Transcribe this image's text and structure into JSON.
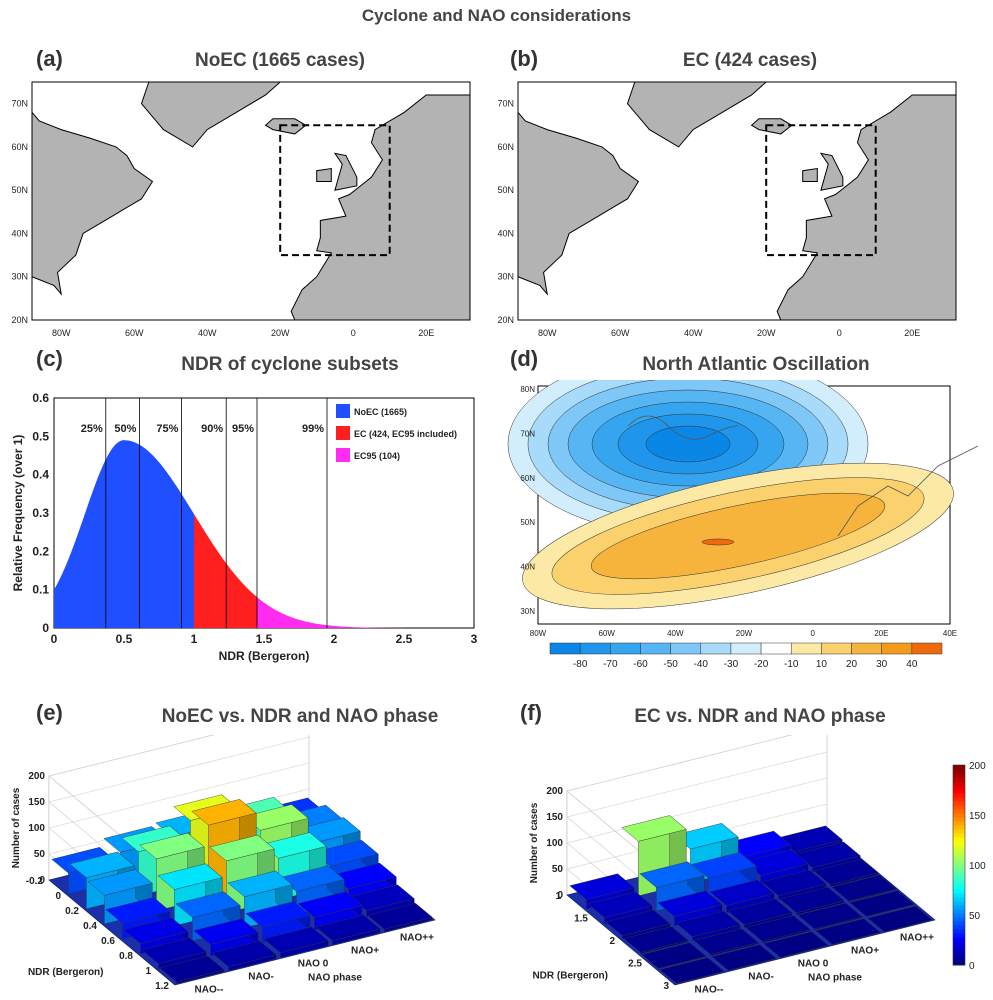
{
  "figure": {
    "title": "Cyclone and NAO considerations"
  },
  "panels": {
    "a": {
      "label": "(a)",
      "title": "NoEC (1665 cases)"
    },
    "b": {
      "label": "(b)",
      "title": "EC (424 cases)"
    },
    "c": {
      "label": "(c)",
      "title": "NDR of cyclone subsets"
    },
    "d": {
      "label": "(d)",
      "title": "North Atlantic Oscillation"
    },
    "e": {
      "label": "(e)",
      "title": "NoEC vs. NDR and NAO phase"
    },
    "f": {
      "label": "(f)",
      "title": "EC vs. NDR and NAO phase"
    }
  },
  "colors": {
    "noec": "#1f4fff",
    "ec": "#ff1f1f",
    "ec95": "#ff2bf0",
    "track_blue": "#2f6fd6",
    "track_red": "#ff4f5f",
    "land": "#b3b3b3"
  },
  "chart_data": [
    {
      "id": "map-a",
      "type": "map",
      "xticks": [
        "80W",
        "60W",
        "40W",
        "20W",
        "0",
        "20E"
      ],
      "yticks": [
        "70N",
        "60N",
        "50N",
        "40N",
        "30N",
        "20N"
      ],
      "box": {
        "lon": [
          -20,
          10
        ],
        "lat": [
          35,
          65
        ]
      }
    },
    {
      "id": "map-b",
      "type": "map",
      "xticks": [
        "80W",
        "60W",
        "40W",
        "20W",
        "0",
        "20E"
      ],
      "yticks": [
        "70N",
        "60N",
        "50N",
        "40N",
        "30N",
        "20N"
      ],
      "box": {
        "lon": [
          -20,
          10
        ],
        "lat": [
          35,
          65
        ]
      }
    },
    {
      "id": "ndr-distribution",
      "type": "area",
      "xlabel": "NDR (Bergeron)",
      "ylabel": "Relative Frequency (over 1)",
      "xlim": [
        0,
        3
      ],
      "ylim": [
        0,
        0.6
      ],
      "xticks": [
        "0",
        "0.5",
        "1",
        "1.5",
        "2",
        "2.5",
        "3"
      ],
      "yticks": [
        "0",
        "0.1",
        "0.2",
        "0.3",
        "0.4",
        "0.5",
        "0.6"
      ],
      "curve": {
        "peak_x": 0.5,
        "peak_y": 0.49
      },
      "percentiles": [
        {
          "label": "25%",
          "x": 0.37
        },
        {
          "label": "50%",
          "x": 0.61
        },
        {
          "label": "75%",
          "x": 0.91
        },
        {
          "label": "90%",
          "x": 1.23
        },
        {
          "label": "95%",
          "x": 1.45
        },
        {
          "label": "99%",
          "x": 1.95
        }
      ],
      "segments": [
        {
          "name": "NoEC (1665)",
          "from": 0,
          "to": 1.0,
          "color": "#1f4fff"
        },
        {
          "name": "EC (424, EC95 included)",
          "from": 1.0,
          "to": 1.45,
          "color": "#ff1f1f"
        },
        {
          "name": "EC95 (104)",
          "from": 1.45,
          "to": 3.0,
          "color": "#ff2bf0"
        }
      ],
      "legend": "top-right"
    },
    {
      "id": "nao-pattern",
      "type": "heatmap",
      "xticks": [
        "80W",
        "60W",
        "40W",
        "20W",
        "0",
        "20E",
        "40E"
      ],
      "yticks": [
        "80N",
        "70N",
        "60N",
        "50N",
        "40N",
        "30N"
      ],
      "colorbar": [
        "-80",
        "-70",
        "-60",
        "-50",
        "-40",
        "-30",
        "-20",
        "-10",
        "10",
        "20",
        "30",
        "40"
      ],
      "colorbar_colors": [
        "#0a86e6",
        "#1f95eb",
        "#35a5f0",
        "#56b6f4",
        "#7ec7f7",
        "#a8daf9",
        "#d2edfb",
        "#ffffff",
        "#fde9a6",
        "#fad16c",
        "#f6b43c",
        "#f39a1a",
        "#ee6a0c"
      ]
    },
    {
      "id": "noec-3d",
      "type": "bar3d",
      "ylabel": "Number of cases",
      "xlabel": "NAO phase",
      "depth_label": "NDR (Bergeron)",
      "zticks": [
        "0",
        "50",
        "100",
        "150",
        "200"
      ],
      "ndr_ticks": [
        "-0.2",
        "0",
        "0.2",
        "0.4",
        "0.6",
        "0.8",
        "1",
        "1.2"
      ],
      "nao_ticks": [
        "NAO--",
        "NAO-",
        "NAO 0",
        "NAO+",
        "NAO++"
      ],
      "zlim": [
        0,
        200
      ],
      "values": [
        [
          40,
          55,
          60,
          45,
          35
        ],
        [
          60,
          85,
          120,
          90,
          50
        ],
        [
          55,
          100,
          140,
          105,
          55
        ],
        [
          30,
          70,
          100,
          80,
          40
        ],
        [
          20,
          45,
          60,
          45,
          25
        ],
        [
          10,
          22,
          30,
          24,
          12
        ],
        [
          4,
          8,
          10,
          8,
          5
        ]
      ]
    },
    {
      "id": "ec-3d",
      "type": "bar3d",
      "ylabel": "Number of cases",
      "xlabel": "NAO phase",
      "depth_label": "NDR (Bergeron)",
      "zticks": [
        "0",
        "50",
        "100",
        "150",
        "200"
      ],
      "ndr_ticks": [
        "1",
        "1.5",
        "2",
        "2.5",
        "3"
      ],
      "nao_ticks": [
        "NAO--",
        "NAO-",
        "NAO 0",
        "NAO+",
        "NAO++"
      ],
      "zlim": [
        0,
        200
      ],
      "colorbar_ticks": [
        "0",
        "50",
        "100",
        "150",
        "200"
      ],
      "values": [
        [
          18,
          105,
          65,
          25,
          10
        ],
        [
          12,
          45,
          38,
          18,
          8
        ],
        [
          6,
          18,
          14,
          8,
          4
        ],
        [
          3,
          8,
          6,
          4,
          2
        ],
        [
          1,
          3,
          3,
          2,
          1
        ],
        [
          1,
          1,
          1,
          1,
          0
        ]
      ]
    }
  ]
}
